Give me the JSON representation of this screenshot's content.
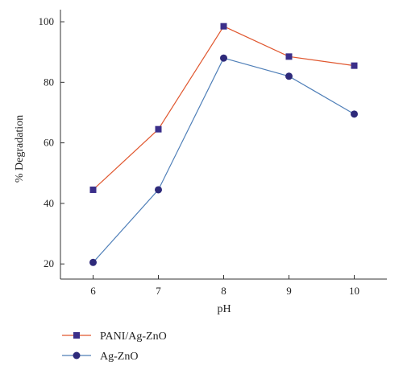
{
  "chart_data": {
    "type": "line",
    "title": "",
    "xlabel": "pH",
    "ylabel": "% Degradation",
    "x": [
      6,
      7,
      8,
      9,
      10
    ],
    "xlim": [
      5.5,
      10.5
    ],
    "ylim": [
      15,
      104
    ],
    "xticks": [
      6,
      7,
      8,
      9,
      10
    ],
    "yticks": [
      20,
      40,
      60,
      80,
      100
    ],
    "grid": false,
    "legend_position": "bottom-left",
    "series": [
      {
        "name": "PANI/Ag-ZnO",
        "values": [
          44.5,
          64.5,
          98.5,
          88.5,
          85.5
        ],
        "line_color": "#e0572f",
        "marker_color": "#3b2f8a",
        "marker": "square"
      },
      {
        "name": "Ag-ZnO",
        "values": [
          20.5,
          44.5,
          88.0,
          82.0,
          69.5
        ],
        "line_color": "#4f7fb8",
        "marker_color": "#2e2a7a",
        "marker": "circle"
      }
    ]
  }
}
